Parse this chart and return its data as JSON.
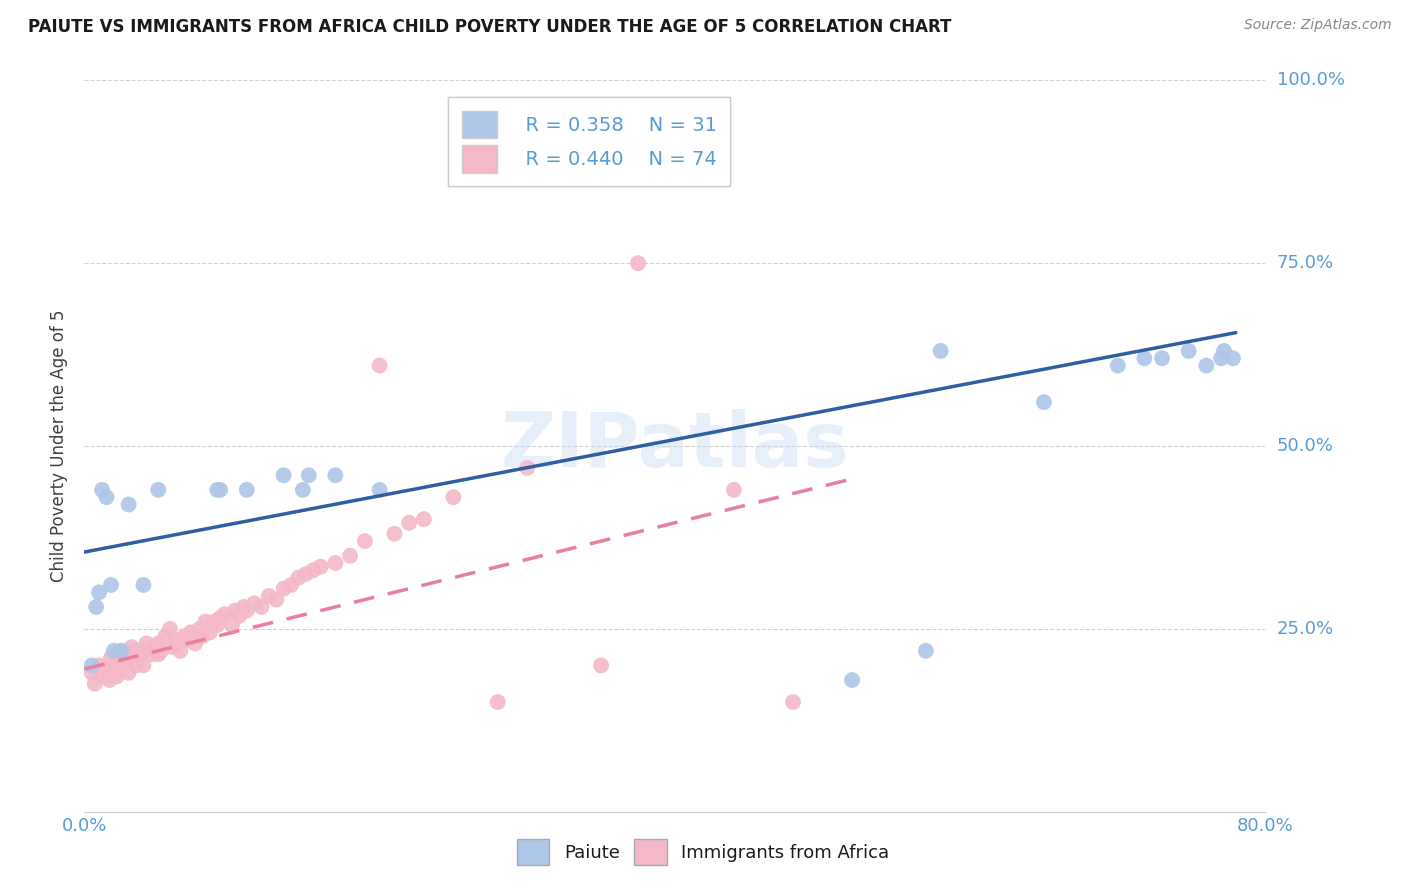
{
  "title": "PAIUTE VS IMMIGRANTS FROM AFRICA CHILD POVERTY UNDER THE AGE OF 5 CORRELATION CHART",
  "source": "Source: ZipAtlas.com",
  "ylabel": "Child Poverty Under the Age of 5",
  "xlim": [
    0.0,
    0.8
  ],
  "ylim": [
    0.0,
    1.0
  ],
  "xticks": [
    0.0,
    0.1,
    0.2,
    0.3,
    0.4,
    0.5,
    0.6,
    0.7,
    0.8
  ],
  "xticklabels": [
    "0.0%",
    "",
    "",
    "",
    "",
    "",
    "",
    "",
    "80.0%"
  ],
  "ytick_vals": [
    0.25,
    0.5,
    0.75,
    1.0
  ],
  "ytick_labels": [
    "25.0%",
    "50.0%",
    "75.0%",
    "100.0%"
  ],
  "legend_r1": "R = 0.358",
  "legend_n1": "N = 31",
  "legend_r2": "R = 0.440",
  "legend_n2": "N = 74",
  "paiute_color": "#aec6e8",
  "africa_color": "#f4b8c8",
  "paiute_line_color": "#2e5fa3",
  "africa_line_color": "#e8809a",
  "watermark": "ZIPatlas",
  "paiute_line_x0": 0.0,
  "paiute_line_x1": 0.78,
  "paiute_line_y0": 0.355,
  "paiute_line_y1": 0.655,
  "africa_line_x0": 0.0,
  "africa_line_x1": 0.52,
  "africa_line_y0": 0.195,
  "africa_line_y1": 0.455,
  "paiute_x": [
    0.005,
    0.008,
    0.01,
    0.012,
    0.015,
    0.018,
    0.02,
    0.025,
    0.03,
    0.04,
    0.05,
    0.09,
    0.092,
    0.11,
    0.135,
    0.148,
    0.152,
    0.17,
    0.2,
    0.52,
    0.57,
    0.58,
    0.65,
    0.7,
    0.718,
    0.73,
    0.748,
    0.76,
    0.77,
    0.772,
    0.778
  ],
  "paiute_y": [
    0.2,
    0.28,
    0.3,
    0.44,
    0.43,
    0.31,
    0.22,
    0.22,
    0.42,
    0.31,
    0.44,
    0.44,
    0.44,
    0.44,
    0.46,
    0.44,
    0.46,
    0.46,
    0.44,
    0.18,
    0.22,
    0.63,
    0.56,
    0.61,
    0.62,
    0.62,
    0.63,
    0.61,
    0.62,
    0.63,
    0.62
  ],
  "africa_x": [
    0.005,
    0.007,
    0.01,
    0.012,
    0.015,
    0.017,
    0.018,
    0.02,
    0.02,
    0.022,
    0.023,
    0.025,
    0.025,
    0.028,
    0.03,
    0.03,
    0.032,
    0.035,
    0.035,
    0.038,
    0.04,
    0.04,
    0.042,
    0.045,
    0.048,
    0.05,
    0.05,
    0.052,
    0.055,
    0.058,
    0.06,
    0.062,
    0.065,
    0.068,
    0.07,
    0.072,
    0.075,
    0.078,
    0.08,
    0.082,
    0.085,
    0.088,
    0.09,
    0.092,
    0.095,
    0.1,
    0.102,
    0.105,
    0.108,
    0.11,
    0.115,
    0.12,
    0.125,
    0.13,
    0.135,
    0.14,
    0.145,
    0.15,
    0.155,
    0.16,
    0.17,
    0.18,
    0.19,
    0.2,
    0.21,
    0.22,
    0.23,
    0.25,
    0.28,
    0.3,
    0.35,
    0.375,
    0.44,
    0.48
  ],
  "africa_y": [
    0.19,
    0.175,
    0.2,
    0.185,
    0.195,
    0.18,
    0.21,
    0.19,
    0.215,
    0.185,
    0.195,
    0.2,
    0.22,
    0.215,
    0.19,
    0.21,
    0.225,
    0.2,
    0.22,
    0.215,
    0.2,
    0.22,
    0.23,
    0.215,
    0.225,
    0.215,
    0.23,
    0.22,
    0.24,
    0.25,
    0.225,
    0.235,
    0.22,
    0.24,
    0.235,
    0.245,
    0.23,
    0.25,
    0.24,
    0.26,
    0.245,
    0.26,
    0.255,
    0.265,
    0.27,
    0.255,
    0.275,
    0.268,
    0.28,
    0.275,
    0.285,
    0.28,
    0.295,
    0.29,
    0.305,
    0.31,
    0.32,
    0.325,
    0.33,
    0.335,
    0.34,
    0.35,
    0.37,
    0.61,
    0.38,
    0.395,
    0.4,
    0.43,
    0.15,
    0.47,
    0.2,
    0.75,
    0.44,
    0.15
  ]
}
